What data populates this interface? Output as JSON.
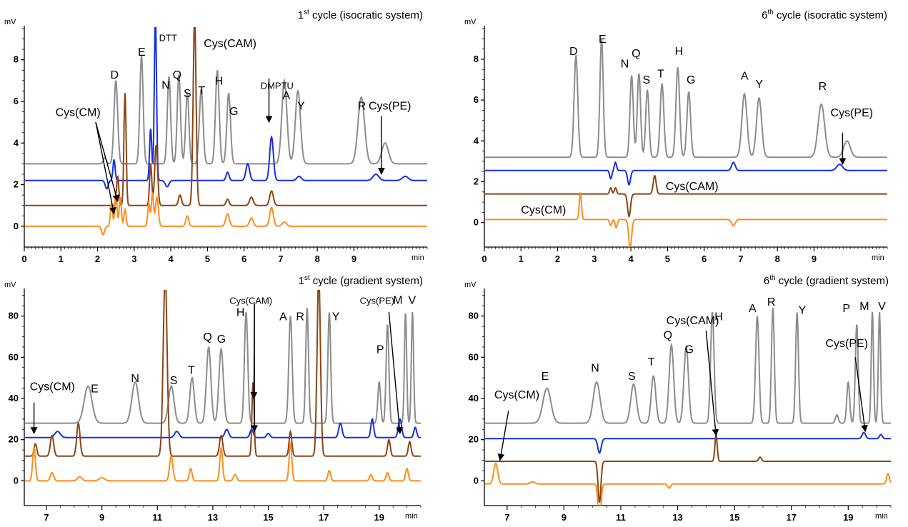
{
  "chart_data": [
    {
      "type": "line",
      "title_base": "1",
      "title_sup": "st",
      "title_rest": " cycle (isocratic system)",
      "ylabel": "mV",
      "xlabel": "min",
      "xlim": [
        0,
        11
      ],
      "ylim": [
        -1,
        9.5
      ],
      "xticks": [
        0,
        1,
        2,
        3,
        4,
        5,
        6,
        7,
        8,
        9
      ],
      "yticks": [
        0,
        2,
        4,
        6,
        8
      ],
      "series": [
        {
          "color": "#8c8c8c",
          "baseline": 3.0,
          "peaks": [
            [
              2.5,
              4.0,
              0.05
            ],
            [
              3.2,
              5.2,
              0.045
            ],
            [
              3.95,
              4.2,
              0.045
            ],
            [
              4.22,
              4.3,
              0.045
            ],
            [
              4.45,
              3.4,
              0.045
            ],
            [
              4.83,
              3.6,
              0.05
            ],
            [
              5.27,
              4.5,
              0.05
            ],
            [
              5.58,
              3.4,
              0.05
            ],
            [
              7.1,
              4.0,
              0.07
            ],
            [
              7.47,
              3.5,
              0.07
            ],
            [
              9.2,
              3.2,
              0.09
            ],
            [
              9.85,
              1.0,
              0.09
            ],
            [
              2.2,
              0.3,
              0.04
            ]
          ]
        },
        {
          "color": "#1530e0",
          "baseline": 2.2,
          "peaks": [
            [
              2.45,
              1.0,
              0.03
            ],
            [
              3.45,
              2.5,
              0.03
            ],
            [
              3.58,
              8.0,
              0.03
            ],
            [
              5.55,
              0.4,
              0.04
            ],
            [
              6.1,
              0.8,
              0.05
            ],
            [
              6.75,
              2.1,
              0.05
            ],
            [
              7.5,
              0.2,
              0.06
            ],
            [
              9.6,
              0.3,
              0.08
            ],
            [
              10.4,
              0.2,
              0.08
            ],
            [
              2.25,
              -0.4,
              0.04
            ],
            [
              3.9,
              -0.3,
              0.05
            ]
          ]
        },
        {
          "color": "#8b4513",
          "baseline": 1.0,
          "peaks": [
            [
              2.55,
              1.4,
              0.03
            ],
            [
              2.75,
              5.4,
              0.03
            ],
            [
              3.45,
              2.0,
              0.03
            ],
            [
              3.6,
              2.9,
              0.04
            ],
            [
              4.65,
              9.0,
              0.04
            ],
            [
              4.25,
              0.5,
              0.04
            ],
            [
              6.2,
              0.4,
              0.05
            ],
            [
              6.75,
              0.7,
              0.05
            ],
            [
              5.55,
              0.3,
              0.04
            ]
          ]
        },
        {
          "color": "#ff8c1a",
          "baseline": 0.0,
          "peaks": [
            [
              2.38,
              1.1,
              0.03
            ],
            [
              2.5,
              1.6,
              0.03
            ],
            [
              2.62,
              1.4,
              0.03
            ],
            [
              2.75,
              0.8,
              0.03
            ],
            [
              3.4,
              1.1,
              0.03
            ],
            [
              3.5,
              1.6,
              0.03
            ],
            [
              3.62,
              1.4,
              0.04
            ],
            [
              4.45,
              0.5,
              0.04
            ],
            [
              5.55,
              0.6,
              0.05
            ],
            [
              6.2,
              0.4,
              0.05
            ],
            [
              6.75,
              0.9,
              0.05
            ],
            [
              7.1,
              0.2,
              0.06
            ],
            [
              2.15,
              -0.4,
              0.04
            ]
          ]
        }
      ],
      "labels": [
        "D",
        "E",
        "DTT",
        "Cys(CAM)",
        "N",
        "Q",
        "S",
        "T",
        "H",
        "G",
        "DMPTU",
        "A",
        "Y",
        "R",
        "Cys(PE)",
        "Cys(CM)"
      ]
    },
    {
      "type": "line",
      "title_base": "6",
      "title_sup": "th",
      "title_rest": " cycle (isocratic system)",
      "ylabel": "mV",
      "xlabel": "min",
      "xlim": [
        0,
        11
      ],
      "ylim": [
        -1.2,
        9.5
      ],
      "xticks": [
        0,
        1,
        2,
        3,
        4,
        5,
        6,
        7,
        8,
        9
      ],
      "yticks": [
        0,
        2,
        4,
        6,
        8
      ],
      "series": [
        {
          "color": "#8c8c8c",
          "baseline": 3.2,
          "peaks": [
            [
              2.5,
              5.0,
              0.05
            ],
            [
              3.2,
              5.8,
              0.045
            ],
            [
              4.02,
              4.0,
              0.045
            ],
            [
              4.22,
              4.1,
              0.045
            ],
            [
              4.45,
              3.3,
              0.045
            ],
            [
              4.85,
              3.6,
              0.05
            ],
            [
              5.28,
              4.4,
              0.05
            ],
            [
              5.58,
              3.2,
              0.05
            ],
            [
              7.1,
              3.1,
              0.07
            ],
            [
              7.5,
              2.9,
              0.07
            ],
            [
              9.2,
              2.6,
              0.09
            ],
            [
              9.9,
              0.8,
              0.09
            ]
          ]
        },
        {
          "color": "#1530e0",
          "baseline": 2.55,
          "peaks": [
            [
              3.45,
              -0.4,
              0.03
            ],
            [
              3.58,
              0.4,
              0.03
            ],
            [
              3.95,
              -0.7,
              0.04
            ],
            [
              6.8,
              0.4,
              0.05
            ],
            [
              9.7,
              0.3,
              0.08
            ]
          ]
        },
        {
          "color": "#8b4513",
          "baseline": 1.4,
          "peaks": [
            [
              3.45,
              0.3,
              0.03
            ],
            [
              3.58,
              0.3,
              0.03
            ],
            [
              3.95,
              -1.1,
              0.04
            ],
            [
              4.65,
              0.9,
              0.04
            ]
          ]
        },
        {
          "color": "#ff8c1a",
          "baseline": 0.15,
          "peaks": [
            [
              2.62,
              1.3,
              0.03
            ],
            [
              3.45,
              -0.3,
              0.03
            ],
            [
              3.6,
              -0.4,
              0.03
            ],
            [
              3.98,
              -1.4,
              0.04
            ],
            [
              6.8,
              -0.3,
              0.05
            ]
          ]
        }
      ],
      "labels": [
        "D",
        "E",
        "N",
        "Q",
        "S",
        "T",
        "H",
        "G",
        "A",
        "Y",
        "R",
        "Cys(PE)",
        "Cys(CAM)",
        "Cys(CM)"
      ]
    },
    {
      "type": "line",
      "title_base": "1",
      "title_sup": "st",
      "title_rest": " cycle (gradient system)",
      "ylabel": "mV",
      "xlabel": "min",
      "xlim": [
        6.2,
        20.5
      ],
      "ylim": [
        -12,
        92
      ],
      "xticks": [
        7,
        9,
        11,
        13,
        15,
        17,
        19
      ],
      "yticks": [
        0,
        20,
        40,
        60,
        80
      ],
      "series": [
        {
          "color": "#8c8c8c",
          "baseline": 28,
          "peaks": [
            [
              8.5,
              18,
              0.14
            ],
            [
              10.2,
              20,
              0.12
            ],
            [
              11.5,
              18,
              0.1
            ],
            [
              12.25,
              22,
              0.08
            ],
            [
              12.85,
              37,
              0.08
            ],
            [
              13.3,
              36,
              0.08
            ],
            [
              14.2,
              54,
              0.06
            ],
            [
              15.8,
              52,
              0.06
            ],
            [
              16.4,
              56,
              0.05
            ],
            [
              17.2,
              54,
              0.05
            ],
            [
              19.0,
              20,
              0.05
            ],
            [
              19.3,
              48,
              0.05
            ],
            [
              19.95,
              54,
              0.04
            ],
            [
              20.2,
              54,
              0.04
            ]
          ]
        },
        {
          "color": "#1530e0",
          "baseline": 21,
          "peaks": [
            [
              7.4,
              3,
              0.1
            ],
            [
              11.7,
              3,
              0.08
            ],
            [
              13.5,
              4,
              0.07
            ],
            [
              14.4,
              4,
              0.06
            ],
            [
              15.0,
              2,
              0.06
            ],
            [
              17.6,
              7,
              0.06
            ],
            [
              18.75,
              9,
              0.05
            ],
            [
              19.75,
              9,
              0.06
            ],
            [
              20.3,
              5,
              0.05
            ]
          ]
        },
        {
          "color": "#8b4513",
          "baseline": 12,
          "peaks": [
            [
              6.6,
              6,
              0.05
            ],
            [
              7.2,
              10,
              0.06
            ],
            [
              8.15,
              16,
              0.06
            ],
            [
              11.28,
              88,
              0.07
            ],
            [
              13.3,
              10,
              0.06
            ],
            [
              14.45,
              36,
              0.04
            ],
            [
              15.8,
              12,
              0.05
            ],
            [
              16.82,
              88,
              0.06
            ],
            [
              19.35,
              8,
              0.05
            ],
            [
              20.1,
              7,
              0.05
            ]
          ]
        },
        {
          "color": "#ff8c1a",
          "baseline": 0,
          "peaks": [
            [
              6.55,
              16,
              0.05
            ],
            [
              7.2,
              4,
              0.06
            ],
            [
              8.2,
              2,
              0.08
            ],
            [
              9.0,
              1.5,
              0.1
            ],
            [
              11.5,
              12,
              0.06
            ],
            [
              12.2,
              6,
              0.05
            ],
            [
              13.3,
              16,
              0.05
            ],
            [
              13.8,
              3,
              0.06
            ],
            [
              15.8,
              18,
              0.05
            ],
            [
              17.2,
              5,
              0.05
            ],
            [
              18.7,
              3,
              0.05
            ],
            [
              19.3,
              4,
              0.05
            ],
            [
              20.0,
              6,
              0.05
            ]
          ]
        }
      ],
      "labels": [
        "Cys(CM)",
        "E",
        "N",
        "S",
        "T",
        "Q",
        "G",
        "H",
        "Cys(CAM)",
        "A",
        "R",
        "Y",
        "Cys(PE)",
        "M",
        "V",
        "P"
      ]
    },
    {
      "type": "line",
      "title_base": "6",
      "title_sup": "th",
      "title_rest": " cycle (gradient system)",
      "ylabel": "mV",
      "xlabel": "min",
      "xlim": [
        6.2,
        20.5
      ],
      "ylim": [
        -12,
        92
      ],
      "xticks": [
        7,
        9,
        11,
        13,
        15,
        17,
        19
      ],
      "yticks": [
        0,
        20,
        40,
        60,
        80
      ],
      "series": [
        {
          "color": "#8c8c8c",
          "baseline": 28,
          "peaks": [
            [
              8.4,
              17,
              0.14
            ],
            [
              10.15,
              20,
              0.12
            ],
            [
              11.45,
              19,
              0.1
            ],
            [
              12.15,
              23,
              0.08
            ],
            [
              12.78,
              38,
              0.08
            ],
            [
              13.3,
              37,
              0.08
            ],
            [
              14.22,
              54,
              0.06
            ],
            [
              15.8,
              52,
              0.06
            ],
            [
              16.35,
              56,
              0.05
            ],
            [
              17.2,
              54,
              0.05
            ],
            [
              18.6,
              4,
              0.05
            ],
            [
              19.0,
              20,
              0.05
            ],
            [
              19.3,
              48,
              0.05
            ],
            [
              19.85,
              54,
              0.04
            ],
            [
              20.1,
              54,
              0.04
            ]
          ]
        },
        {
          "color": "#1530e0",
          "baseline": 20.5,
          "peaks": [
            [
              10.25,
              -7,
              0.06
            ],
            [
              19.55,
              3,
              0.06
            ],
            [
              20.15,
              2,
              0.05
            ]
          ]
        },
        {
          "color": "#8b4513",
          "baseline": 9.5,
          "peaks": [
            [
              10.25,
              -20,
              0.05
            ],
            [
              14.35,
              13,
              0.04
            ],
            [
              15.9,
              2,
              0.05
            ]
          ]
        },
        {
          "color": "#ff8c1a",
          "baseline": -1.5,
          "peaks": [
            [
              6.6,
              10,
              0.07
            ],
            [
              7.9,
              1,
              0.08
            ],
            [
              10.25,
              -20,
              0.05
            ],
            [
              12.7,
              -2,
              0.05
            ],
            [
              20.4,
              5,
              0.05
            ]
          ]
        }
      ],
      "labels": [
        "E",
        "N",
        "S",
        "T",
        "Q",
        "G",
        "Cys(CAM)",
        "H",
        "A",
        "R",
        "Y",
        "P",
        "M",
        "V",
        "Cys(PE)",
        "Cys(CM)"
      ]
    }
  ]
}
